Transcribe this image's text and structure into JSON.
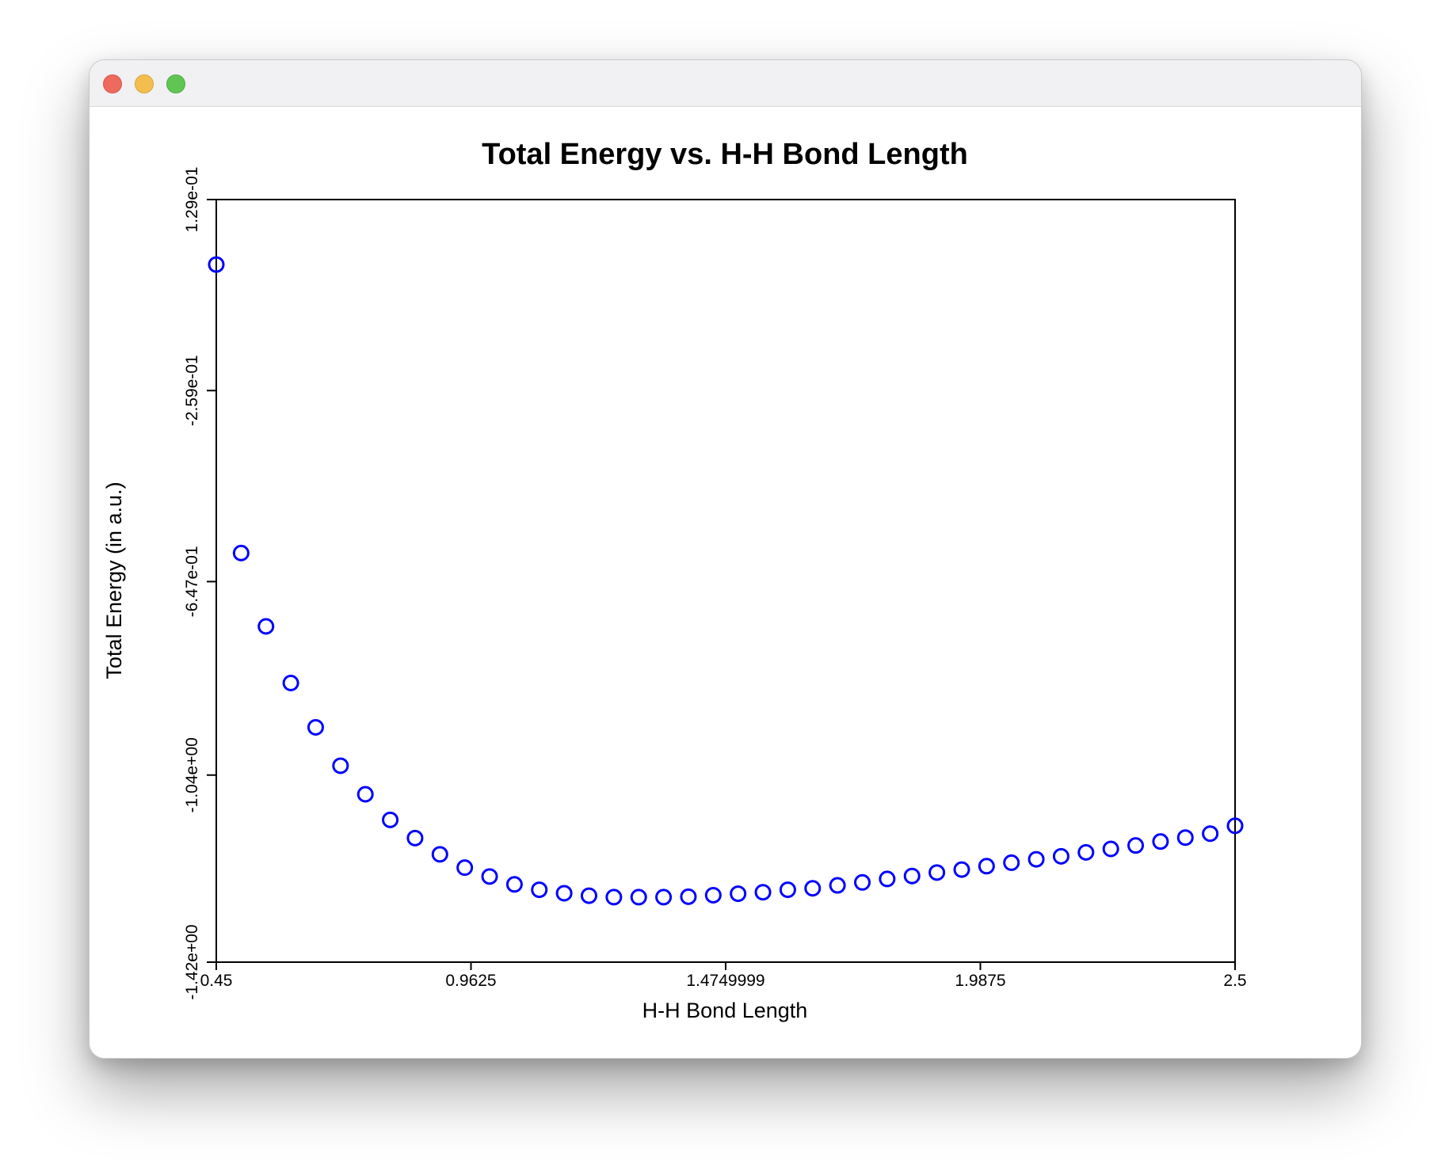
{
  "window": {
    "controls": {
      "close": "close-button",
      "minimize": "minimize-button",
      "zoom": "zoom-button"
    }
  },
  "colors": {
    "marker": "#0000ff",
    "axis": "#000000"
  },
  "chart_data": {
    "type": "scatter",
    "title": "Total Energy vs. H-H Bond Length",
    "xlabel": "H-H Bond Length",
    "ylabel": "Total Energy (in a.u.)",
    "xlim": [
      0.45,
      2.5
    ],
    "ylim": [
      -1.42,
      0.129
    ],
    "x_ticks": [
      0.45,
      0.9625,
      1.4749999,
      1.9875,
      2.5
    ],
    "x_tick_labels": [
      "0.45",
      "0.9625",
      "1.4749999",
      "1.9875",
      "2.5"
    ],
    "y_ticks": [
      -1.42,
      -1.04,
      -0.647,
      -0.259,
      0.129
    ],
    "y_tick_labels": [
      "-1.42e+00",
      "-1.04e+00",
      "-6.47e-01",
      "-2.59e-01",
      "1.29e-01"
    ],
    "marker": "open-circle",
    "series": [
      {
        "x": [
          0.45,
          0.5,
          0.55,
          0.6,
          0.65,
          0.7,
          0.75,
          0.8,
          0.85,
          0.9,
          0.95,
          1.0,
          1.05,
          1.1,
          1.15,
          1.2,
          1.25,
          1.3,
          1.35,
          1.4,
          1.45,
          1.5,
          1.55,
          1.6,
          1.65,
          1.7,
          1.75,
          1.8,
          1.85,
          1.9,
          1.95,
          2.0,
          2.05,
          2.1,
          2.15,
          2.2,
          2.25,
          2.3,
          2.35,
          2.4,
          2.45,
          2.5
        ],
        "y": [
          -0.003,
          -0.589,
          -0.738,
          -0.853,
          -0.943,
          -1.021,
          -1.079,
          -1.131,
          -1.168,
          -1.201,
          -1.228,
          -1.246,
          -1.262,
          -1.273,
          -1.28,
          -1.285,
          -1.288,
          -1.288,
          -1.288,
          -1.287,
          -1.284,
          -1.281,
          -1.278,
          -1.273,
          -1.27,
          -1.264,
          -1.258,
          -1.251,
          -1.245,
          -1.238,
          -1.232,
          -1.225,
          -1.218,
          -1.211,
          -1.205,
          -1.197,
          -1.19,
          -1.183,
          -1.175,
          -1.167,
          -1.159,
          -1.143
        ]
      }
    ]
  }
}
